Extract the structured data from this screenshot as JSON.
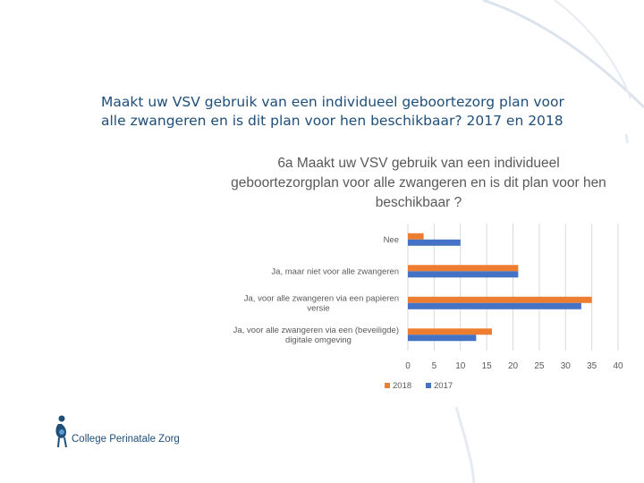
{
  "slide": {
    "title": "Maakt uw VSV gebruik van een individueel geboortezorg plan voor alle zwangeren en is dit plan voor hen beschikbaar? 2017 en 2018"
  },
  "logo": {
    "text": "College Perinatale Zorg"
  },
  "colors": {
    "accent": "#1f4e79",
    "series_2018": "#ed7d31",
    "series_2017": "#4472c4",
    "grid": "#d9d9d9"
  },
  "chart_data": {
    "type": "bar",
    "orientation": "horizontal",
    "title": "6a Maakt uw VSV gebruik van een individueel geboortezorgplan voor alle zwangeren en is dit plan voor hen beschikbaar ?",
    "categories": [
      "Nee",
      "Ja, maar niet voor alle zwangeren",
      "Ja, voor alle zwangeren via een papieren versie",
      "Ja, voor alle zwangeren via een (beveiligde) digitale omgeving"
    ],
    "series": [
      {
        "name": "2018",
        "color": "#ed7d31",
        "values": [
          3,
          21,
          35,
          16
        ]
      },
      {
        "name": "2017",
        "color": "#4472c4",
        "values": [
          10,
          21,
          33,
          13
        ]
      }
    ],
    "xlim": [
      0,
      40
    ],
    "xticks": [
      0,
      5,
      10,
      15,
      20,
      25,
      30,
      35,
      40
    ],
    "grid": true,
    "legend": "bottom"
  }
}
